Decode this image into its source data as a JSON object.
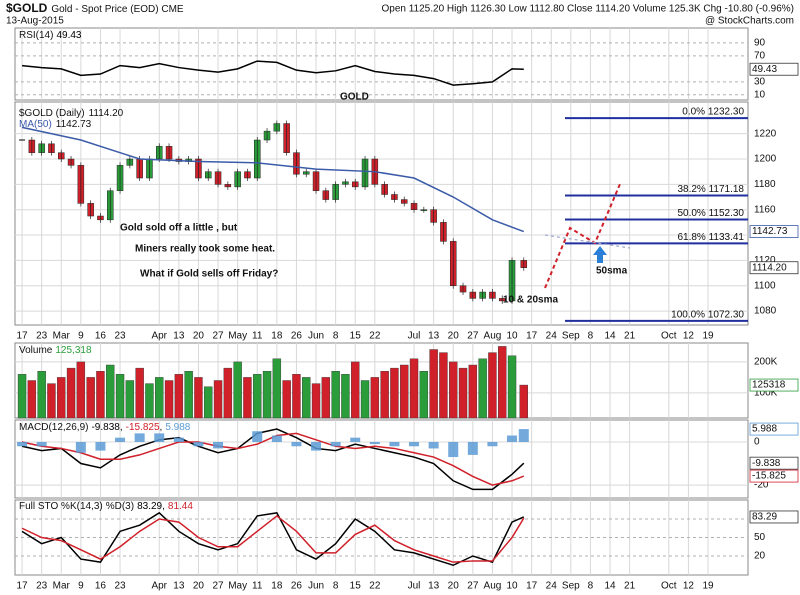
{
  "header": {
    "symbol": "$GOLD",
    "name": "Gold - Spot Price (EOD) CME",
    "date": "13-Aug-2015",
    "quote": "Open 1125.20 High 1126.30 Low 1112.80 Close 1114.20 Volume 125.3K Chg -10.80 (-0.96%)",
    "credit": "@ StockCharts.com"
  },
  "x_axis": {
    "xlim": [
      -0.36,
      37.04
    ],
    "xticks": [
      {
        "value": 0,
        "label": "17"
      },
      {
        "value": 1,
        "label": "23"
      },
      {
        "value": 2,
        "label": "Mar"
      },
      {
        "value": 3,
        "label": "9"
      },
      {
        "value": 4,
        "label": "16"
      },
      {
        "value": 5,
        "label": "23"
      },
      {
        "value": 7,
        "label": "Apr"
      },
      {
        "value": 8,
        "label": "13"
      },
      {
        "value": 9,
        "label": "20"
      },
      {
        "value": 10,
        "label": "27"
      },
      {
        "value": 11,
        "label": "May"
      },
      {
        "value": 12,
        "label": "11"
      },
      {
        "value": 13,
        "label": "18"
      },
      {
        "value": 14,
        "label": "26"
      },
      {
        "value": 15,
        "label": "Jun"
      },
      {
        "value": 16,
        "label": "8"
      },
      {
        "value": 17,
        "label": "15"
      },
      {
        "value": 18,
        "label": "22"
      },
      {
        "value": 20,
        "label": "Jul"
      },
      {
        "value": 21,
        "label": "13"
      },
      {
        "value": 22,
        "label": "20"
      },
      {
        "value": 23,
        "label": "27"
      },
      {
        "value": 24,
        "label": "Aug"
      },
      {
        "value": 25,
        "label": "10"
      },
      {
        "value": 26,
        "label": "17"
      },
      {
        "value": 27,
        "label": "24"
      },
      {
        "value": 28,
        "label": "Sep"
      },
      {
        "value": 29,
        "label": "8"
      },
      {
        "value": 30,
        "label": "14"
      },
      {
        "value": 31,
        "label": "21"
      },
      {
        "value": 33,
        "label": "Oct"
      },
      {
        "value": 34,
        "label": "12"
      },
      {
        "value": 35,
        "label": "19"
      }
    ]
  },
  "chart_data": [
    {
      "type": "line",
      "ylim": [
        2,
        113
      ],
      "yticks": [
        10,
        30,
        70,
        90
      ],
      "grid_dash": true,
      "annotations": [
        "GOLD"
      ],
      "x": [
        0,
        1,
        2,
        3,
        4,
        5,
        6,
        7,
        8,
        9,
        10,
        11,
        12,
        13,
        14,
        15,
        16,
        17,
        18,
        19,
        20,
        21,
        22,
        23,
        24,
        25,
        25.6
      ],
      "series": [
        {
          "name": "RSI(14)",
          "color": "#000000",
          "box": true,
          "values": [
            55,
            52,
            50,
            40,
            42,
            55,
            52,
            58,
            52,
            48,
            45,
            50,
            62,
            60,
            48,
            44,
            47,
            55,
            46,
            42,
            40,
            35,
            25,
            27,
            30,
            50,
            49.43
          ]
        }
      ]
    },
    {
      "type": "candlestick",
      "ylim": [
        1069,
        1245
      ],
      "yticks": [
        1080,
        1100,
        1120,
        1140,
        1160,
        1180,
        1200,
        1220
      ],
      "up_color": "#2a9d3a",
      "down_color": "#d0202a",
      "x": [
        0,
        0.5,
        1,
        1.5,
        2,
        2.5,
        3,
        3.5,
        4,
        4.5,
        5,
        5.5,
        6,
        6.5,
        7,
        7.5,
        8,
        8.5,
        9,
        9.5,
        10,
        10.5,
        11,
        11.5,
        12,
        12.5,
        13,
        13.5,
        14,
        14.5,
        15,
        15.5,
        16,
        16.5,
        17,
        17.5,
        18,
        18.5,
        19,
        19.5,
        20,
        20.5,
        21,
        21.5,
        22,
        22.5,
        23,
        23.5,
        24,
        24.5,
        25,
        25.6
      ],
      "series": [
        {
          "name": "$GOLD (Daily)",
          "color": "#000000",
          "box": true,
          "legend_label": "1114.20",
          "box_label": "1114.20",
          "values": [
            1215,
            1205,
            1212,
            1205,
            1200,
            1195,
            1165,
            1155,
            1152,
            1175,
            1195,
            1200,
            1185,
            1200,
            1210,
            1200,
            1198,
            1200,
            1185,
            1190,
            1180,
            1178,
            1190,
            1185,
            1215,
            1222,
            1228,
            1205,
            1188,
            1190,
            1175,
            1168,
            1180,
            1182,
            1178,
            1200,
            1180,
            1172,
            1168,
            1165,
            1160,
            1160,
            1150,
            1135,
            1100,
            1095,
            1090,
            1095,
            1090,
            1088,
            1120,
            1114.2
          ]
        },
        {
          "name": "MA(50)",
          "color": "#3b5ba8",
          "box": true,
          "x": [
            0,
            3,
            6,
            9,
            12,
            15,
            18,
            20,
            22,
            24,
            25.6
          ],
          "values": [
            1225,
            1215,
            1200,
            1198,
            1197,
            1192,
            1190,
            1185,
            1170,
            1152,
            1142.73
          ]
        }
      ],
      "fib_levels": [
        {
          "value": 1232.3,
          "label": "0.0% 1232.30"
        },
        {
          "value": 1171.18,
          "label": "38.2% 1171.18"
        },
        {
          "value": 1152.3,
          "label": "50.0% 1152.30"
        },
        {
          "value": 1133.41,
          "label": "61.8% 1133.41"
        },
        {
          "value": 1072.3,
          "label": "100.0% 1072.30"
        }
      ],
      "annotations": [
        "Gold sold off a little , but",
        "Miners really took some heat.",
        "What if Gold sells off Friday?",
        "10 & 20sma",
        "50sma"
      ]
    },
    {
      "type": "bar",
      "ylim": [
        19000,
        261000
      ],
      "yticks": [
        {
          "value": 100000,
          "label": "100K"
        },
        {
          "value": 200000,
          "label": "200K"
        }
      ],
      "up_color": "#2a9d3a",
      "down_color": "#d0202a",
      "x": [
        0,
        0.5,
        1,
        1.5,
        2,
        2.5,
        3,
        3.5,
        4,
        4.5,
        5,
        5.5,
        6,
        6.5,
        7,
        7.5,
        8,
        8.5,
        9,
        9.5,
        10,
        10.5,
        11,
        11.5,
        12,
        12.5,
        13,
        13.5,
        14,
        14.5,
        15,
        15.5,
        16,
        16.5,
        17,
        17.5,
        18,
        18.5,
        19,
        19.5,
        20,
        20.5,
        21,
        21.5,
        22,
        22.5,
        23,
        23.5,
        24,
        24.5,
        25,
        25.6
      ],
      "series": [
        {
          "name": "Volume",
          "color": "#2a9d3a",
          "box": true,
          "legend_label": "125,318",
          "values": [
            160000,
            140000,
            170000,
            130000,
            150000,
            180000,
            200000,
            150000,
            170000,
            190000,
            160000,
            140000,
            180000,
            130000,
            150000,
            140000,
            160000,
            170000,
            150000,
            120000,
            140000,
            180000,
            200000,
            150000,
            160000,
            170000,
            210000,
            140000,
            160000,
            150000,
            130000,
            150000,
            170000,
            160000,
            200000,
            140000,
            150000,
            170000,
            180000,
            190000,
            210000,
            170000,
            240000,
            230000,
            200000,
            180000,
            190000,
            210000,
            230000,
            250000,
            220000,
            125318
          ]
        }
      ]
    },
    {
      "type": "line",
      "ylim": [
        -26,
        10.2
      ],
      "yticks": [
        -20,
        0
      ],
      "x": [
        0,
        1,
        2,
        3,
        4,
        5,
        6,
        7,
        8,
        9,
        10,
        11,
        12,
        13,
        14,
        15,
        16,
        17,
        18,
        19,
        20,
        21,
        22,
        23,
        24,
        25,
        25.6
      ],
      "series": [
        {
          "name": "MACD(12,26,9)",
          "color": "#000000",
          "box": true,
          "values": [
            -2,
            -4,
            -3,
            -10,
            -12,
            -6,
            -2,
            1,
            2,
            -2,
            -5,
            -3,
            4,
            6,
            2,
            -3,
            -4,
            -1,
            -3,
            -5,
            -7,
            -10,
            -18,
            -22,
            -22,
            -15,
            -9.838
          ]
        },
        {
          "color": "#d0202a",
          "box": true,
          "values": [
            0,
            -2,
            -3,
            -5,
            -8,
            -8,
            -6,
            -3,
            0,
            0,
            -2,
            -3,
            -1,
            3,
            4,
            1,
            -2,
            -3,
            -2,
            -3,
            -5,
            -7,
            -11,
            -16,
            -20,
            -18,
            -15.825
          ]
        },
        {
          "color": "#5b9bd5",
          "box": true,
          "style": "histogram",
          "values": [
            -2,
            -2,
            0,
            -5,
            -4,
            2,
            4,
            4,
            2,
            -2,
            -3,
            0,
            5,
            3,
            -2,
            -4,
            -2,
            2,
            -1,
            -2,
            -2,
            -3,
            -7,
            -6,
            -2,
            3,
            5.988
          ]
        }
      ]
    },
    {
      "type": "line",
      "ylim": [
        -10.8,
        110.8
      ],
      "yticks": [
        20,
        50,
        80
      ],
      "grid_dash": true,
      "x": [
        0,
        1,
        2,
        3,
        4,
        5,
        6,
        7,
        8,
        9,
        10,
        11,
        12,
        13,
        14,
        15,
        16,
        17,
        18,
        19,
        20,
        21,
        22,
        23,
        24,
        25,
        25.6
      ],
      "series": [
        {
          "name": "Full STO %K(14,3)",
          "color": "#000000",
          "box": true,
          "values": [
            60,
            40,
            50,
            15,
            10,
            60,
            70,
            90,
            60,
            40,
            30,
            40,
            85,
            90,
            30,
            15,
            40,
            80,
            60,
            30,
            25,
            15,
            5,
            20,
            10,
            75,
            83.29
          ]
        },
        {
          "name": "%D(3)",
          "color": "#d0202a",
          "values": [
            65,
            50,
            45,
            30,
            15,
            35,
            60,
            80,
            75,
            50,
            35,
            35,
            60,
            85,
            60,
            25,
            25,
            55,
            70,
            45,
            30,
            20,
            10,
            12,
            12,
            50,
            81.44
          ]
        }
      ]
    }
  ]
}
